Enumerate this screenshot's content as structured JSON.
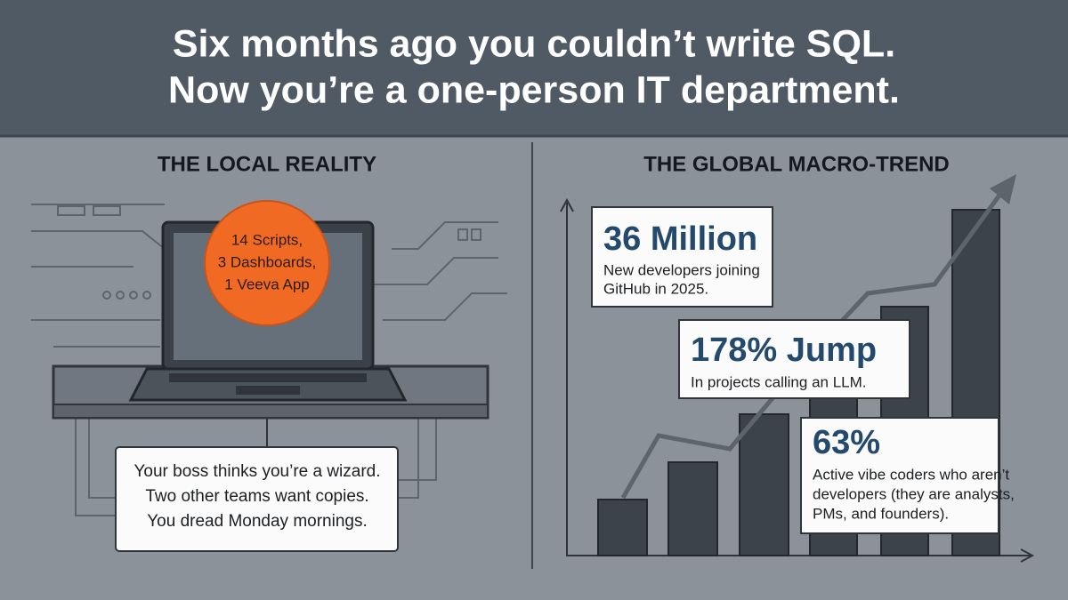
{
  "header": {
    "title_lines": [
      "Six months ago you couldn’t write SQL.",
      "Now you’re a one-person IT department."
    ]
  },
  "left": {
    "heading": "THE LOCAL REALITY",
    "badge_lines": [
      "14 Scripts,",
      "3 Dashboards,",
      "1 Veeva App"
    ],
    "note_lines": [
      "Your boss thinks you’re a wizard.",
      "Two other teams want copies.",
      "You dread Monday mornings."
    ]
  },
  "right": {
    "heading": "THE GLOBAL MACRO-TREND",
    "stats": [
      {
        "headline": "36 Million",
        "text_lines": [
          "New developers joining",
          "GitHub in 2025."
        ]
      },
      {
        "headline": "178% Jump",
        "text_lines": [
          "In projects calling an LLM."
        ]
      },
      {
        "headline": "63%",
        "text_lines": [
          "Active vibe coders who aren’t",
          "developers (they are analysts,",
          "PMs, and founders)."
        ]
      }
    ]
  }
}
